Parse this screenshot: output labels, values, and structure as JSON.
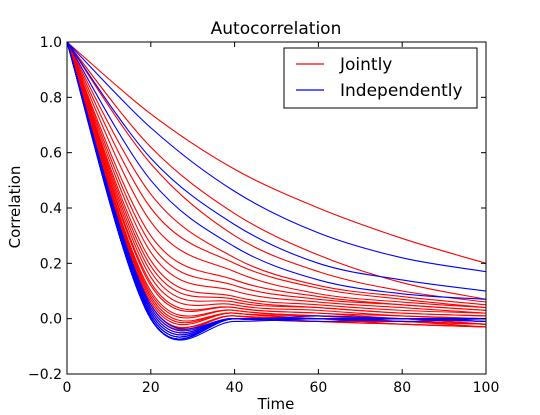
{
  "chart_data": {
    "type": "line",
    "title": "Autocorrelation",
    "xlabel": "Time",
    "ylabel": "Correlation",
    "xlim": [
      0,
      100
    ],
    "ylim": [
      -0.2,
      1.0
    ],
    "xticks": [
      "0",
      "20",
      "40",
      "60",
      "80",
      "100"
    ],
    "yticks": [
      "−0.2",
      "0.0",
      "0.2",
      "0.4",
      "0.6",
      "0.8",
      "1.0"
    ],
    "grid": false,
    "legend_position": "top-right",
    "series_colors": {
      "Jointly": "#ff0000",
      "Independently": "#0000ff"
    },
    "series": [
      {
        "name": "Jointly",
        "color": "#ff0000",
        "note": "many red curves",
        "curves": [
          {
            "x": [
              0,
              20,
              40,
              60,
              80,
              100
            ],
            "y": [
              1.0,
              0.74,
              0.54,
              0.4,
              0.29,
              0.2
            ]
          },
          {
            "x": [
              0,
              20,
              40,
              60,
              80,
              100
            ],
            "y": [
              1.0,
              0.62,
              0.38,
              0.23,
              0.13,
              0.07
            ]
          },
          {
            "x": [
              0,
              20,
              40,
              60,
              80,
              100
            ],
            "y": [
              1.0,
              0.56,
              0.3,
              0.17,
              0.1,
              0.06
            ]
          },
          {
            "x": [
              0,
              20,
              40,
              60,
              80,
              100
            ],
            "y": [
              1.0,
              0.45,
              0.22,
              0.12,
              0.08,
              0.05
            ]
          },
          {
            "x": [
              0,
              20,
              40,
              60,
              80,
              100
            ],
            "y": [
              1.0,
              0.4,
              0.2,
              0.11,
              0.07,
              0.04
            ]
          },
          {
            "x": [
              0,
              20,
              40,
              60,
              80,
              100
            ],
            "y": [
              1.0,
              0.35,
              0.17,
              0.09,
              0.06,
              0.04
            ]
          },
          {
            "x": [
              0,
              20,
              40,
              60,
              80,
              100
            ],
            "y": [
              1.0,
              0.3,
              0.14,
              0.08,
              0.05,
              0.03
            ]
          },
          {
            "x": [
              0,
              20,
              40,
              60,
              80,
              100
            ],
            "y": [
              1.0,
              0.27,
              0.12,
              0.07,
              0.05,
              0.03
            ]
          },
          {
            "x": [
              0,
              20,
              40,
              60,
              80,
              100
            ],
            "y": [
              1.0,
              0.24,
              0.1,
              0.06,
              0.04,
              0.02
            ]
          },
          {
            "x": [
              0,
              20,
              40,
              60,
              80,
              100
            ],
            "y": [
              1.0,
              0.21,
              0.08,
              0.05,
              0.03,
              0.02
            ]
          },
          {
            "x": [
              0,
              20,
              40,
              60,
              80,
              100
            ],
            "y": [
              1.0,
              0.19,
              0.07,
              0.04,
              0.02,
              0.01
            ]
          },
          {
            "x": [
              0,
              20,
              40,
              60,
              80,
              100
            ],
            "y": [
              1.0,
              0.17,
              0.06,
              0.04,
              0.02,
              0.01
            ]
          },
          {
            "x": [
              0,
              20,
              40,
              60,
              80,
              100
            ],
            "y": [
              1.0,
              0.15,
              0.05,
              0.03,
              0.01,
              0.0
            ]
          },
          {
            "x": [
              0,
              20,
              40,
              60,
              80,
              100
            ],
            "y": [
              1.0,
              0.13,
              0.04,
              0.02,
              0.0,
              -0.01
            ]
          },
          {
            "x": [
              0,
              20,
              40,
              60,
              80,
              100
            ],
            "y": [
              1.0,
              0.12,
              0.04,
              0.02,
              0.01,
              0.0
            ]
          },
          {
            "x": [
              0,
              20,
              40,
              60,
              80,
              100
            ],
            "y": [
              1.0,
              0.1,
              0.03,
              0.01,
              0.0,
              -0.01
            ]
          },
          {
            "x": [
              0,
              20,
              40,
              60,
              80,
              100
            ],
            "y": [
              1.0,
              0.09,
              0.03,
              0.01,
              0.0,
              -0.02
            ]
          },
          {
            "x": [
              0,
              20,
              40,
              60,
              80,
              100
            ],
            "y": [
              1.0,
              0.08,
              0.02,
              0.01,
              -0.01,
              -0.02
            ]
          },
          {
            "x": [
              0,
              20,
              40,
              60,
              80,
              100
            ],
            "y": [
              1.0,
              0.07,
              0.02,
              0.0,
              -0.01,
              -0.02
            ]
          },
          {
            "x": [
              0,
              20,
              40,
              60,
              80,
              100
            ],
            "y": [
              1.0,
              0.06,
              0.02,
              0.0,
              -0.01,
              -0.03
            ]
          },
          {
            "x": [
              0,
              20,
              40,
              60,
              80,
              100
            ],
            "y": [
              1.0,
              0.05,
              0.01,
              0.0,
              -0.02,
              -0.03
            ]
          },
          {
            "x": [
              0,
              20,
              40,
              60,
              80,
              100
            ],
            "y": [
              1.0,
              0.05,
              0.01,
              -0.01,
              -0.02,
              -0.03
            ]
          },
          {
            "x": [
              0,
              20,
              40,
              60,
              80,
              100
            ],
            "y": [
              1.0,
              0.04,
              0.01,
              0.0,
              0.0,
              -0.02
            ]
          },
          {
            "x": [
              0,
              20,
              40,
              60,
              80,
              100
            ],
            "y": [
              1.0,
              0.03,
              0.0,
              -0.01,
              -0.02,
              -0.03
            ]
          },
          {
            "x": [
              0,
              20,
              40,
              60,
              80,
              100
            ],
            "y": [
              1.0,
              0.03,
              0.0,
              0.0,
              -0.01,
              -0.02
            ]
          },
          {
            "x": [
              0,
              20,
              40,
              60,
              80,
              100
            ],
            "y": [
              1.0,
              0.02,
              0.0,
              -0.01,
              -0.01,
              -0.02
            ]
          }
        ]
      },
      {
        "name": "Independently",
        "color": "#0000ff",
        "note": "many blue curves",
        "curves": [
          {
            "x": [
              0,
              20,
              40,
              60,
              80,
              100
            ],
            "y": [
              1.0,
              0.69,
              0.46,
              0.31,
              0.22,
              0.17
            ]
          },
          {
            "x": [
              0,
              20,
              40,
              60,
              80,
              100
            ],
            "y": [
              1.0,
              0.58,
              0.34,
              0.2,
              0.14,
              0.1
            ]
          },
          {
            "x": [
              0,
              20,
              40,
              60,
              80,
              100
            ],
            "y": [
              1.0,
              0.5,
              0.26,
              0.14,
              0.09,
              0.07
            ]
          },
          {
            "x": [
              0,
              20,
              40,
              60,
              80,
              100
            ],
            "y": [
              1.0,
              0.05,
              0.0,
              0.01,
              0.0,
              0.0
            ]
          },
          {
            "x": [
              0,
              20,
              40,
              60,
              80,
              100
            ],
            "y": [
              1.0,
              0.04,
              0.0,
              0.0,
              0.0,
              0.0
            ]
          },
          {
            "x": [
              0,
              20,
              40,
              60,
              80,
              100
            ],
            "y": [
              1.0,
              0.03,
              0.0,
              0.0,
              0.0,
              0.0
            ]
          },
          {
            "x": [
              0,
              20,
              40,
              60,
              80,
              100
            ],
            "y": [
              1.0,
              0.02,
              0.0,
              0.0,
              0.0,
              0.0
            ]
          },
          {
            "x": [
              0,
              20,
              40,
              60,
              80,
              100
            ],
            "y": [
              1.0,
              0.02,
              0.0,
              0.0,
              0.0,
              0.0
            ]
          },
          {
            "x": [
              0,
              20,
              40,
              60,
              80,
              100
            ],
            "y": [
              1.0,
              0.01,
              0.0,
              0.0,
              0.0,
              0.0
            ]
          },
          {
            "x": [
              0,
              20,
              40,
              60,
              80,
              100
            ],
            "y": [
              1.0,
              0.01,
              0.0,
              0.0,
              0.0,
              0.0
            ]
          },
          {
            "x": [
              0,
              20,
              40,
              60,
              80,
              100
            ],
            "y": [
              1.0,
              0.01,
              0.0,
              0.0,
              0.0,
              0.0
            ]
          },
          {
            "x": [
              0,
              20,
              40,
              60,
              80,
              100
            ],
            "y": [
              1.0,
              0.0,
              0.0,
              0.0,
              0.0,
              0.0
            ]
          },
          {
            "x": [
              0,
              20,
              40,
              60,
              80,
              100
            ],
            "y": [
              1.0,
              0.0,
              0.0,
              0.0,
              0.0,
              0.0
            ]
          },
          {
            "x": [
              0,
              20,
              40,
              60,
              80,
              100
            ],
            "y": [
              1.0,
              0.0,
              -0.01,
              0.0,
              0.0,
              -0.01
            ]
          },
          {
            "x": [
              0,
              20,
              40,
              60,
              80,
              100
            ],
            "y": [
              1.0,
              0.0,
              0.0,
              0.0,
              0.0,
              -0.01
            ]
          },
          {
            "x": [
              0,
              20,
              40,
              60,
              80,
              100
            ],
            "y": [
              1.0,
              0.0,
              0.0,
              0.0,
              0.0,
              0.0
            ]
          },
          {
            "x": [
              0,
              20,
              40,
              60,
              80,
              100
            ],
            "y": [
              1.0,
              0.0,
              0.0,
              0.0,
              -0.01,
              0.0
            ]
          },
          {
            "x": [
              0,
              20,
              40,
              60,
              80,
              100
            ],
            "y": [
              1.0,
              0.0,
              0.0,
              0.0,
              0.0,
              0.0
            ]
          },
          {
            "x": [
              0,
              20,
              40,
              60,
              80,
              100
            ],
            "y": [
              1.0,
              0.0,
              0.0,
              -0.01,
              0.0,
              0.0
            ]
          },
          {
            "x": [
              0,
              20,
              40,
              60,
              80,
              100
            ],
            "y": [
              1.0,
              0.0,
              0.0,
              0.0,
              0.0,
              0.0
            ]
          },
          {
            "x": [
              0,
              20,
              40,
              60,
              80,
              100
            ],
            "y": [
              1.0,
              0.0,
              0.0,
              0.0,
              0.0,
              0.0
            ]
          },
          {
            "x": [
              0,
              20,
              40,
              60,
              80,
              100
            ],
            "y": [
              1.0,
              0.0,
              0.0,
              0.0,
              0.0,
              0.0
            ]
          },
          {
            "x": [
              0,
              20,
              40,
              60,
              80,
              100
            ],
            "y": [
              1.0,
              0.0,
              0.0,
              0.0,
              0.0,
              0.0
            ]
          },
          {
            "x": [
              0,
              20,
              40,
              60,
              80,
              100
            ],
            "y": [
              1.0,
              0.0,
              0.0,
              0.0,
              0.0,
              0.0
            ]
          }
        ]
      }
    ]
  }
}
